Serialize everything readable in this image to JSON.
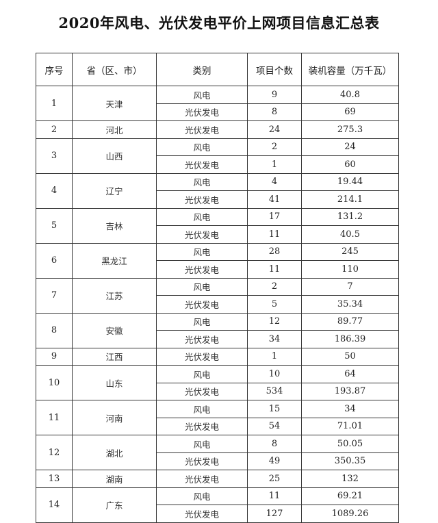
{
  "title": "2020年风电、光伏发电平价上网项目信息汇总表",
  "headers": [
    "序号",
    "省（区、市）",
    "类别",
    "项目个数",
    "装机容量（万千瓦）"
  ],
  "groups": [
    {
      "no": "1",
      "province": "天津",
      "rows": [
        {
          "type": "风电",
          "count": "9",
          "capacity": "40.8"
        },
        {
          "type": "光伏发电",
          "count": "8",
          "capacity": "69"
        }
      ]
    },
    {
      "no": "2",
      "province": "河北",
      "rows": [
        {
          "type": "光伏发电",
          "count": "24",
          "capacity": "275.3"
        }
      ]
    },
    {
      "no": "3",
      "province": "山西",
      "rows": [
        {
          "type": "风电",
          "count": "2",
          "capacity": "24"
        },
        {
          "type": "光伏发电",
          "count": "1",
          "capacity": "60"
        }
      ]
    },
    {
      "no": "4",
      "province": "辽宁",
      "rows": [
        {
          "type": "风电",
          "count": "4",
          "capacity": "19.44"
        },
        {
          "type": "光伏发电",
          "count": "41",
          "capacity": "214.1"
        }
      ]
    },
    {
      "no": "5",
      "province": "吉林",
      "rows": [
        {
          "type": "风电",
          "count": "17",
          "capacity": "131.2"
        },
        {
          "type": "光伏发电",
          "count": "11",
          "capacity": "40.5"
        }
      ]
    },
    {
      "no": "6",
      "province": "黑龙江",
      "rows": [
        {
          "type": "风电",
          "count": "28",
          "capacity": "245"
        },
        {
          "type": "光伏发电",
          "count": "11",
          "capacity": "110"
        }
      ]
    },
    {
      "no": "7",
      "province": "江苏",
      "rows": [
        {
          "type": "风电",
          "count": "2",
          "capacity": "7"
        },
        {
          "type": "光伏发电",
          "count": "5",
          "capacity": "35.34"
        }
      ]
    },
    {
      "no": "8",
      "province": "安徽",
      "rows": [
        {
          "type": "风电",
          "count": "12",
          "capacity": "89.77"
        },
        {
          "type": "光伏发电",
          "count": "34",
          "capacity": "186.39"
        }
      ]
    },
    {
      "no": "9",
      "province": "江西",
      "rows": [
        {
          "type": "光伏发电",
          "count": "1",
          "capacity": "50"
        }
      ]
    },
    {
      "no": "10",
      "province": "山东",
      "rows": [
        {
          "type": "风电",
          "count": "10",
          "capacity": "64"
        },
        {
          "type": "光伏发电",
          "count": "534",
          "capacity": "193.87"
        }
      ]
    },
    {
      "no": "11",
      "province": "河南",
      "rows": [
        {
          "type": "风电",
          "count": "15",
          "capacity": "34"
        },
        {
          "type": "光伏发电",
          "count": "54",
          "capacity": "71.01"
        }
      ]
    },
    {
      "no": "12",
      "province": "湖北",
      "rows": [
        {
          "type": "风电",
          "count": "8",
          "capacity": "50.05"
        },
        {
          "type": "光伏发电",
          "count": "49",
          "capacity": "350.35"
        }
      ]
    },
    {
      "no": "13",
      "province": "湖南",
      "rows": [
        {
          "type": "光伏发电",
          "count": "25",
          "capacity": "132"
        }
      ]
    },
    {
      "no": "14",
      "province": "广东",
      "rows": [
        {
          "type": "风电",
          "count": "11",
          "capacity": "69.21"
        },
        {
          "type": "光伏发电",
          "count": "127",
          "capacity": "1089.26"
        }
      ]
    }
  ]
}
